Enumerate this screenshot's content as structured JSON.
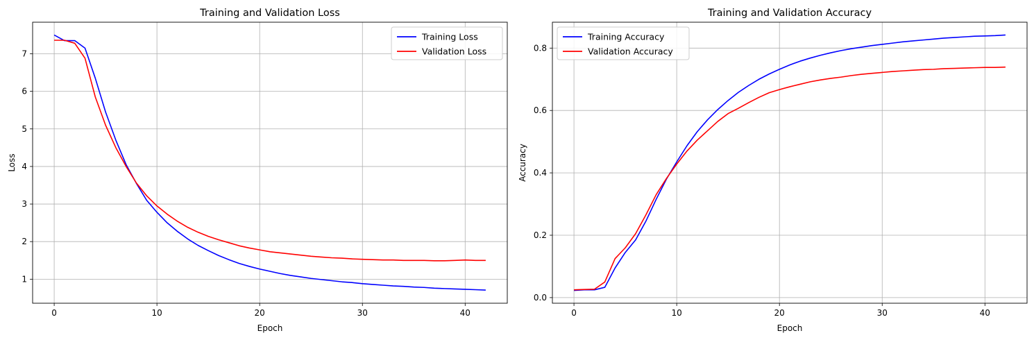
{
  "chart_data": [
    {
      "type": "line",
      "title": "Training and Validation Loss",
      "xlabel": "Epoch",
      "ylabel": "Loss",
      "xlim": [
        -2.1,
        44.1
      ],
      "ylim": [
        0.36,
        7.84
      ],
      "xticks": [
        0,
        10,
        20,
        30,
        40
      ],
      "yticks": [
        1,
        2,
        3,
        4,
        5,
        6,
        7
      ],
      "grid": true,
      "legend": "top-right",
      "series": [
        {
          "name": "Training Loss",
          "color": "#0000ff",
          "values": [
            7.5,
            7.35,
            7.35,
            7.15,
            6.35,
            5.45,
            4.7,
            4.05,
            3.55,
            3.1,
            2.78,
            2.5,
            2.27,
            2.07,
            1.9,
            1.76,
            1.63,
            1.52,
            1.42,
            1.34,
            1.27,
            1.21,
            1.15,
            1.1,
            1.06,
            1.02,
            0.99,
            0.96,
            0.93,
            0.91,
            0.88,
            0.86,
            0.84,
            0.82,
            0.81,
            0.79,
            0.78,
            0.76,
            0.75,
            0.74,
            0.73,
            0.72,
            0.71
          ]
        },
        {
          "name": "Validation Loss",
          "color": "#ff0000",
          "values": [
            7.36,
            7.36,
            7.28,
            6.88,
            5.85,
            5.1,
            4.5,
            4.0,
            3.56,
            3.22,
            2.95,
            2.73,
            2.54,
            2.38,
            2.25,
            2.14,
            2.05,
            1.97,
            1.89,
            1.83,
            1.78,
            1.73,
            1.7,
            1.67,
            1.64,
            1.61,
            1.59,
            1.57,
            1.56,
            1.54,
            1.53,
            1.52,
            1.51,
            1.51,
            1.5,
            1.5,
            1.5,
            1.49,
            1.49,
            1.5,
            1.51,
            1.5,
            1.5
          ]
        }
      ]
    },
    {
      "type": "line",
      "title": "Training and Validation Accuracy",
      "xlabel": "Epoch",
      "ylabel": "Accuracy",
      "xlim": [
        -2.1,
        44.1
      ],
      "ylim": [
        -0.018,
        0.883
      ],
      "xticks": [
        0,
        10,
        20,
        30,
        40
      ],
      "yticks": [
        0.0,
        0.2,
        0.4,
        0.6,
        0.8
      ],
      "ytick_labels": [
        "0.0",
        "0.2",
        "0.4",
        "0.6",
        "0.8"
      ],
      "grid": true,
      "legend": "top-left",
      "series": [
        {
          "name": "Training Accuracy",
          "color": "#0000ff",
          "values": [
            0.023,
            0.025,
            0.025,
            0.033,
            0.095,
            0.145,
            0.185,
            0.245,
            0.315,
            0.38,
            0.435,
            0.487,
            0.532,
            0.57,
            0.603,
            0.632,
            0.658,
            0.68,
            0.7,
            0.717,
            0.732,
            0.746,
            0.758,
            0.768,
            0.777,
            0.785,
            0.792,
            0.798,
            0.803,
            0.808,
            0.812,
            0.816,
            0.82,
            0.823,
            0.826,
            0.829,
            0.832,
            0.834,
            0.836,
            0.838,
            0.839,
            0.84,
            0.842
          ]
        },
        {
          "name": "Validation Accuracy",
          "color": "#ff0000",
          "values": [
            0.025,
            0.026,
            0.027,
            0.05,
            0.125,
            0.16,
            0.205,
            0.265,
            0.33,
            0.382,
            0.428,
            0.47,
            0.505,
            0.535,
            0.565,
            0.59,
            0.607,
            0.625,
            0.642,
            0.657,
            0.667,
            0.676,
            0.684,
            0.692,
            0.698,
            0.703,
            0.707,
            0.712,
            0.716,
            0.719,
            0.722,
            0.725,
            0.727,
            0.729,
            0.731,
            0.732,
            0.734,
            0.735,
            0.736,
            0.737,
            0.738,
            0.738,
            0.739
          ]
        }
      ]
    }
  ]
}
